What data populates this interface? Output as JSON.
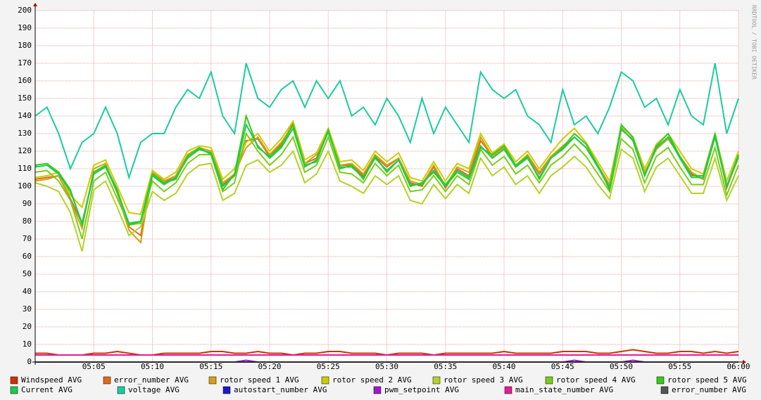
{
  "chart_data": {
    "type": "line",
    "watermark": "RRDTOOL / TOBI OETIKER",
    "x": [
      "05:00",
      "05:01",
      "05:02",
      "05:03",
      "05:04",
      "05:05",
      "05:06",
      "05:07",
      "05:08",
      "05:09",
      "05:10",
      "05:11",
      "05:12",
      "05:13",
      "05:14",
      "05:15",
      "05:16",
      "05:17",
      "05:18",
      "05:19",
      "05:20",
      "05:21",
      "05:22",
      "05:23",
      "05:24",
      "05:25",
      "05:26",
      "05:27",
      "05:28",
      "05:29",
      "05:30",
      "05:31",
      "05:32",
      "05:33",
      "05:34",
      "05:35",
      "05:36",
      "05:37",
      "05:38",
      "05:39",
      "05:40",
      "05:41",
      "05:42",
      "05:43",
      "05:44",
      "05:45",
      "05:46",
      "05:47",
      "05:48",
      "05:49",
      "05:50",
      "05:51",
      "05:52",
      "05:53",
      "05:54",
      "05:55",
      "05:56",
      "05:57",
      "05:58",
      "05:59",
      "06:00"
    ],
    "xlim": [
      "05:00",
      "06:00"
    ],
    "xticks": [
      "05:05",
      "05:10",
      "05:15",
      "05:20",
      "05:25",
      "05:30",
      "05:35",
      "05:40",
      "05:45",
      "05:50",
      "05:55",
      "06:00"
    ],
    "ylim": [
      0,
      200
    ],
    "yticks": [
      0,
      10,
      20,
      30,
      40,
      50,
      60,
      70,
      80,
      90,
      100,
      110,
      120,
      130,
      140,
      150,
      160,
      170,
      180,
      190,
      200
    ],
    "grid": true,
    "series": [
      {
        "name": "Windspeed AVG",
        "color": "#cc3300",
        "values": [
          5,
          5,
          4,
          4,
          4,
          5,
          5,
          6,
          5,
          4,
          4,
          5,
          5,
          5,
          5,
          6,
          6,
          5,
          5,
          6,
          5,
          5,
          4,
          5,
          5,
          6,
          6,
          5,
          5,
          5,
          4,
          5,
          5,
          5,
          4,
          5,
          5,
          5,
          5,
          5,
          6,
          5,
          5,
          5,
          5,
          6,
          6,
          6,
          5,
          5,
          6,
          7,
          6,
          5,
          5,
          6,
          6,
          5,
          6,
          5,
          6
        ]
      },
      {
        "name": "error_number AVG",
        "color": "#e06a1a",
        "values": [
          104,
          105,
          106,
          93,
          79,
          108,
          112,
          96,
          77,
          72,
          107,
          102,
          106,
          118,
          121,
          119,
          101,
          106,
          126,
          127,
          117,
          124,
          136,
          113,
          116,
          132,
          112,
          112,
          106,
          117,
          111,
          116,
          102,
          100,
          111,
          99,
          110,
          106,
          126,
          117,
          122,
          111,
          117,
          107,
          117,
          122,
          128,
          122,
          111,
          100,
          133,
          126,
          107,
          122,
          128,
          117,
          107,
          104,
          130,
          99,
          117
        ]
      },
      {
        "name": "rotor speed 1 AVG",
        "color": "#d4a017",
        "values": [
          103,
          104,
          106,
          92,
          76,
          110,
          113,
          96,
          75,
          68,
          108,
          103,
          106,
          118,
          122,
          120,
          102,
          107,
          122,
          128,
          118,
          125,
          135,
          113,
          118,
          131,
          112,
          113,
          107,
          118,
          112,
          116,
          103,
          101,
          112,
          100,
          111,
          108,
          128,
          117,
          122,
          112,
          118,
          108,
          117,
          123,
          128,
          122,
          112,
          101,
          132,
          127,
          108,
          121,
          127,
          117,
          108,
          104,
          128,
          100,
          116
        ]
      },
      {
        "name": "rotor speed 2 AVG",
        "color": "#cccc00",
        "values": [
          105,
          106,
          108,
          95,
          88,
          112,
          115,
          100,
          85,
          84,
          109,
          104,
          108,
          120,
          123,
          122,
          104,
          110,
          125,
          130,
          120,
          127,
          137,
          115,
          119,
          133,
          114,
          115,
          109,
          120,
          114,
          119,
          105,
          103,
          114,
          103,
          113,
          110,
          130,
          119,
          124,
          114,
          120,
          110,
          119,
          127,
          133,
          125,
          114,
          103,
          134,
          128,
          110,
          124,
          130,
          120,
          110,
          107,
          130,
          103,
          120
        ]
      },
      {
        "name": "rotor speed 3 AVG",
        "color": "#b3d22a",
        "values": [
          102,
          100,
          97,
          85,
          63,
          98,
          103,
          88,
          72,
          77,
          97,
          92,
          96,
          107,
          112,
          113,
          92,
          96,
          112,
          115,
          108,
          112,
          120,
          102,
          107,
          120,
          103,
          100,
          96,
          106,
          101,
          106,
          92,
          90,
          101,
          93,
          101,
          96,
          116,
          106,
          111,
          101,
          106,
          96,
          106,
          111,
          117,
          111,
          101,
          93,
          121,
          116,
          97,
          111,
          116,
          106,
          96,
          96,
          116,
          92,
          106
        ]
      },
      {
        "name": "rotor speed 4 AVG",
        "color": "#7acc1a",
        "values": [
          108,
          109,
          103,
          92,
          70,
          103,
          108,
          93,
          78,
          79,
          103,
          97,
          102,
          113,
          118,
          118,
          97,
          102,
          130,
          120,
          112,
          118,
          128,
          108,
          112,
          128,
          108,
          107,
          102,
          113,
          106,
          112,
          97,
          98,
          106,
          97,
          106,
          101,
          121,
          112,
          117,
          107,
          112,
          102,
          112,
          117,
          124,
          117,
          107,
          97,
          127,
          121,
          102,
          117,
          122,
          111,
          101,
          101,
          122,
          95,
          112
        ]
      },
      {
        "name": "rotor speed 5 AVG",
        "color": "#33cc1a",
        "values": [
          112,
          113,
          108,
          98,
          78,
          108,
          112,
          98,
          78,
          80,
          107,
          102,
          104,
          117,
          122,
          118,
          98,
          107,
          140,
          122,
          117,
          123,
          135,
          112,
          114,
          132,
          110,
          112,
          104,
          117,
          108,
          115,
          100,
          102,
          108,
          100,
          108,
          104,
          122,
          118,
          123,
          112,
          117,
          104,
          116,
          122,
          130,
          124,
          112,
          98,
          135,
          128,
          106,
          123,
          130,
          117,
          106,
          106,
          130,
          100,
          118
        ]
      },
      {
        "name": "Current AVG",
        "color": "#1acc4d",
        "values": [
          111,
          112,
          107,
          97,
          79,
          107,
          111,
          97,
          79,
          80,
          106,
          101,
          105,
          116,
          121,
          119,
          100,
          106,
          135,
          123,
          116,
          122,
          133,
          111,
          115,
          131,
          111,
          111,
          105,
          116,
          109,
          115,
          101,
          101,
          109,
          101,
          109,
          105,
          123,
          116,
          121,
          111,
          116,
          105,
          116,
          121,
          128,
          122,
          111,
          99,
          133,
          126,
          106,
          122,
          128,
          116,
          105,
          105,
          128,
          100,
          117
        ]
      },
      {
        "name": "voltage AVG",
        "color": "#1acca0",
        "values": [
          140,
          145,
          130,
          110,
          125,
          130,
          145,
          130,
          105,
          125,
          130,
          130,
          145,
          155,
          150,
          165,
          140,
          130,
          170,
          150,
          145,
          155,
          160,
          145,
          160,
          150,
          160,
          140,
          145,
          135,
          150,
          140,
          125,
          150,
          130,
          145,
          135,
          125,
          165,
          155,
          150,
          155,
          140,
          135,
          125,
          155,
          135,
          140,
          130,
          145,
          165,
          160,
          145,
          150,
          135,
          155,
          140,
          135,
          170,
          130,
          150
        ]
      },
      {
        "name": "autostart_number AVG",
        "color": "#1a1acc",
        "values": [
          0,
          0,
          0,
          0,
          0,
          0,
          0,
          0,
          0,
          0,
          0,
          0,
          0,
          0,
          0,
          0,
          0,
          0,
          0,
          0,
          0,
          0,
          0,
          0,
          0,
          0,
          0,
          0,
          0,
          0,
          0,
          0,
          0,
          0,
          0,
          0,
          0,
          0,
          0,
          0,
          0,
          0,
          0,
          0,
          0,
          0,
          0,
          0,
          0,
          0,
          0,
          0,
          0,
          0,
          0,
          0,
          0,
          0,
          0,
          0,
          0
        ]
      },
      {
        "name": "pwm_setpoint AVG",
        "color": "#a01acc",
        "values": [
          0,
          0,
          0,
          0,
          0,
          0,
          0,
          0,
          0,
          0,
          0,
          0,
          0,
          0,
          0,
          0,
          0,
          0,
          1,
          0,
          0,
          0,
          0,
          0,
          0,
          0,
          0,
          0,
          0,
          0,
          0,
          0,
          0,
          0,
          0,
          0,
          0,
          0,
          0,
          0,
          0,
          0,
          0,
          0,
          0,
          0,
          1,
          0,
          0,
          0,
          0,
          1,
          0,
          0,
          0,
          0,
          0,
          0,
          0,
          0,
          0
        ]
      },
      {
        "name": "main_state_number AVG",
        "color": "#e61a99",
        "values": [
          4,
          4,
          4,
          4,
          4,
          4,
          4,
          4,
          4,
          4,
          4,
          4,
          4,
          4,
          4,
          4,
          4,
          4,
          4,
          4,
          4,
          4,
          4,
          4,
          4,
          4,
          4,
          4,
          4,
          4,
          4,
          4,
          4,
          4,
          4,
          4,
          4,
          4,
          4,
          4,
          4,
          4,
          4,
          4,
          4,
          4,
          4,
          4,
          4,
          4,
          4,
          4,
          4,
          4,
          4,
          4,
          4,
          4,
          4,
          4,
          4
        ]
      },
      {
        "name": "error_number AVG",
        "color": "#555555",
        "values": [
          0,
          0,
          0,
          0,
          0,
          0,
          0,
          0,
          0,
          0,
          0,
          0,
          0,
          0,
          0,
          0,
          0,
          0,
          0,
          0,
          0,
          0,
          0,
          0,
          0,
          0,
          0,
          0,
          0,
          0,
          0,
          0,
          0,
          0,
          0,
          0,
          0,
          0,
          0,
          0,
          0,
          0,
          0,
          0,
          0,
          0,
          0,
          0,
          0,
          0,
          0,
          0,
          0,
          0,
          0,
          0,
          0,
          0,
          0,
          0,
          0
        ]
      }
    ]
  }
}
